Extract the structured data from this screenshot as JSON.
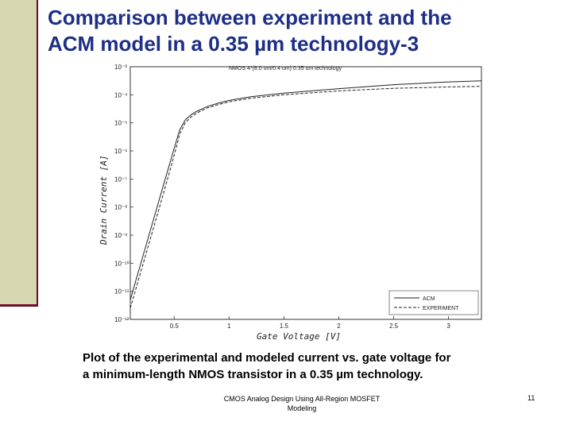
{
  "slide": {
    "title_line1": "Comparison between experiment and the",
    "title_line2": "ACM model in a 0.35 µm technology-3",
    "caption_line1": "Plot of the experimental and modeled current vs. gate voltage for",
    "caption_line2": "a minimum-length NMOS transistor in a 0.35 µm technology.",
    "footer_line1": "CMOS Analog Design Using All-Region MOSFET",
    "footer_line2": "Modeling",
    "page_number": "11"
  },
  "colors": {
    "title": "#1d2f86",
    "sidebar": "#d6d6b0",
    "accent": "#6a0d2a"
  },
  "chart_data": {
    "type": "line",
    "title": "NMOS   4*(8.0 um/0.4 um)    0.35 um technology",
    "xlabel": "Gate Voltage [V]",
    "ylabel": "Drain Current [A]",
    "xlim": [
      0.1,
      3.3
    ],
    "ylim_exponent": [
      -12,
      -3
    ],
    "y_scale": "log",
    "grid": false,
    "legend_position": "bottom-right",
    "x_ticks": [
      "0.5",
      "1",
      "1.5",
      "2",
      "2.5",
      "3"
    ],
    "x_tick_values": [
      0.5,
      1,
      1.5,
      2,
      2.5,
      3
    ],
    "y_ticks": [
      "10⁻³",
      "10⁻⁴",
      "10⁻⁵",
      "10⁻⁶",
      "10⁻⁷",
      "10⁻⁸",
      "10⁻⁹",
      "10⁻¹⁰",
      "10⁻¹¹",
      "10⁻¹²"
    ],
    "y_tick_exponents": [
      -3,
      -4,
      -5,
      -6,
      -7,
      -8,
      -9,
      -10,
      -11,
      -12
    ],
    "series": [
      {
        "name": "ACM",
        "style": "solid",
        "x": [
          0.1,
          0.2,
          0.3,
          0.4,
          0.5,
          0.55,
          0.6,
          0.65,
          0.7,
          0.8,
          0.9,
          1.0,
          1.2,
          1.5,
          2.0,
          2.5,
          3.0,
          3.3
        ],
        "log10_y": [
          -11.3,
          -9.95,
          -8.6,
          -7.25,
          -5.9,
          -5.25,
          -4.9,
          -4.72,
          -4.6,
          -4.42,
          -4.3,
          -4.2,
          -4.07,
          -3.94,
          -3.78,
          -3.64,
          -3.54,
          -3.5
        ]
      },
      {
        "name": "EXPERIMENT",
        "style": "dashed",
        "x": [
          0.1,
          0.2,
          0.3,
          0.4,
          0.5,
          0.55,
          0.6,
          0.65,
          0.7,
          0.8,
          0.9,
          1.0,
          1.2,
          1.5,
          2.0,
          2.5,
          3.0,
          3.3
        ],
        "log10_y": [
          -11.6,
          -10.25,
          -8.9,
          -7.55,
          -6.15,
          -5.4,
          -5.0,
          -4.8,
          -4.66,
          -4.47,
          -4.35,
          -4.25,
          -4.12,
          -4.0,
          -3.86,
          -3.77,
          -3.72,
          -3.7
        ]
      }
    ]
  }
}
